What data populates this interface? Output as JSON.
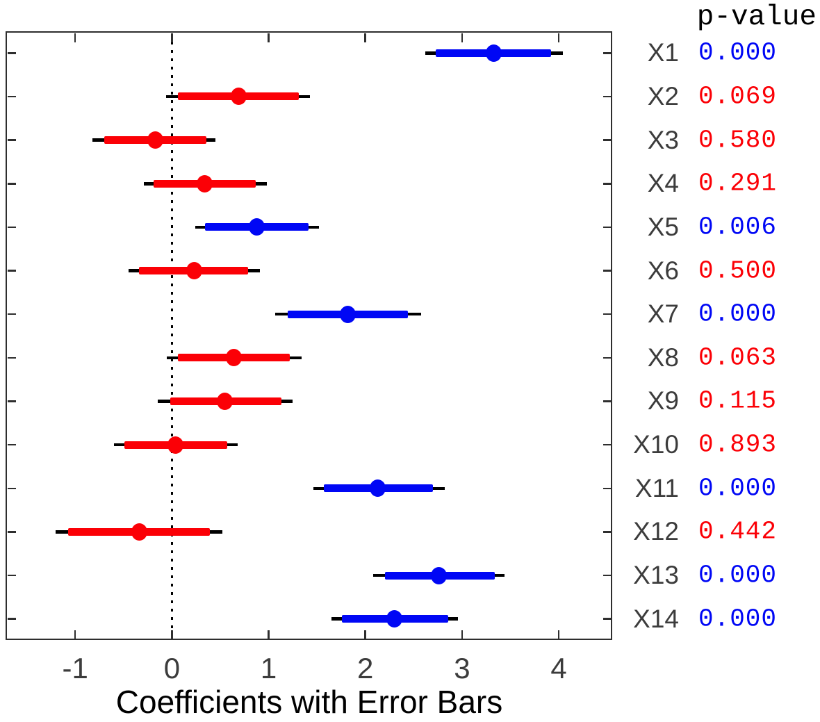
{
  "chart_data": {
    "type": "scatter",
    "subtype": "horizontal-coefficient-error-bars",
    "title": "Coefficients with Error Bars",
    "pvalue_header": "p-value",
    "x_ticks": [
      -1,
      0,
      1,
      2,
      3,
      4
    ],
    "xlim": [
      -1.72,
      4.56
    ],
    "zero_reference_line": {
      "x": 0,
      "style": "dotted",
      "color": "#000000"
    },
    "grid": false,
    "legend": "none",
    "significance_threshold": 0.05,
    "colors": {
      "significant": "#0007f5",
      "not_significant": "#fb0006",
      "outer_line": "#000000",
      "axis": "#2e2e2e",
      "tick_label": "#3c3c3c",
      "var_label": "#3c3c3c",
      "title": "#000000",
      "pvalue_header": "#000000"
    },
    "rows": [
      {
        "label": "X1",
        "coef": 3.33,
        "inner": [
          2.73,
          3.92
        ],
        "outer": [
          2.62,
          4.04
        ],
        "p_value": "0.000",
        "significant": true
      },
      {
        "label": "X2",
        "coef": 0.69,
        "inner": [
          0.06,
          1.31
        ],
        "outer": [
          -0.06,
          1.43
        ],
        "p_value": "0.069",
        "significant": false
      },
      {
        "label": "X3",
        "coef": -0.17,
        "inner": [
          -0.7,
          0.36
        ],
        "outer": [
          -0.82,
          0.45
        ],
        "p_value": "0.580",
        "significant": false
      },
      {
        "label": "X4",
        "coef": 0.34,
        "inner": [
          -0.19,
          0.87
        ],
        "outer": [
          -0.29,
          0.98
        ],
        "p_value": "0.291",
        "significant": false
      },
      {
        "label": "X5",
        "coef": 0.88,
        "inner": [
          0.34,
          1.41
        ],
        "outer": [
          0.24,
          1.52
        ],
        "p_value": "0.006",
        "significant": true
      },
      {
        "label": "X6",
        "coef": 0.23,
        "inner": [
          -0.34,
          0.79
        ],
        "outer": [
          -0.45,
          0.91
        ],
        "p_value": "0.500",
        "significant": false
      },
      {
        "label": "X7",
        "coef": 1.82,
        "inner": [
          1.2,
          2.44
        ],
        "outer": [
          1.07,
          2.58
        ],
        "p_value": "0.000",
        "significant": true
      },
      {
        "label": "X8",
        "coef": 0.64,
        "inner": [
          0.06,
          1.22
        ],
        "outer": [
          -0.05,
          1.34
        ],
        "p_value": "0.063",
        "significant": false
      },
      {
        "label": "X9",
        "coef": 0.55,
        "inner": [
          -0.02,
          1.13
        ],
        "outer": [
          -0.15,
          1.25
        ],
        "p_value": "0.115",
        "significant": false
      },
      {
        "label": "X10",
        "coef": 0.04,
        "inner": [
          -0.49,
          0.57
        ],
        "outer": [
          -0.6,
          0.68
        ],
        "p_value": "0.893",
        "significant": false
      },
      {
        "label": "X11",
        "coef": 2.13,
        "inner": [
          1.57,
          2.7
        ],
        "outer": [
          1.46,
          2.82
        ],
        "p_value": "0.000",
        "significant": true
      },
      {
        "label": "X12",
        "coef": -0.34,
        "inner": [
          -1.07,
          0.39
        ],
        "outer": [
          -1.2,
          0.52
        ],
        "p_value": "0.442",
        "significant": false
      },
      {
        "label": "X13",
        "coef": 2.76,
        "inner": [
          2.2,
          3.34
        ],
        "outer": [
          2.08,
          3.44
        ],
        "p_value": "0.000",
        "significant": true
      },
      {
        "label": "X14",
        "coef": 2.3,
        "inner": [
          1.76,
          2.86
        ],
        "outer": [
          1.65,
          2.96
        ],
        "p_value": "0.000",
        "significant": true
      }
    ]
  }
}
